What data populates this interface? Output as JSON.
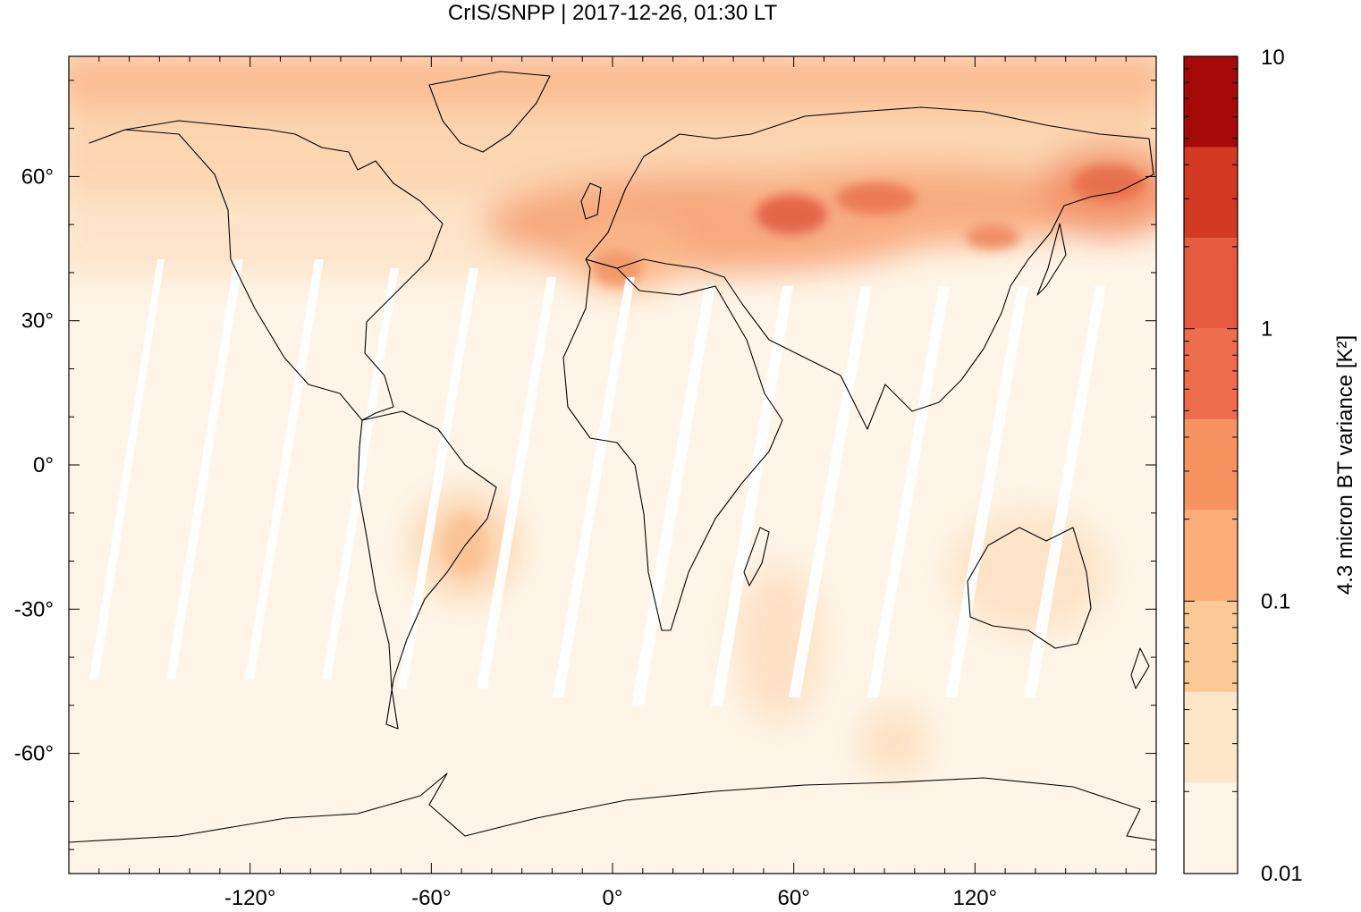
{
  "title": "CrIS/SNPP | 2017-12-26, 01:30 LT",
  "map": {
    "lon_range": [
      -180,
      180
    ],
    "lat_range": [
      -85,
      85
    ],
    "x_ticks": [
      {
        "value": -120,
        "label": "-120°"
      },
      {
        "value": -60,
        "label": "-60°"
      },
      {
        "value": 0,
        "label": "0°"
      },
      {
        "value": 60,
        "label": "60°"
      },
      {
        "value": 120,
        "label": "120°"
      }
    ],
    "y_ticks": [
      {
        "value": 60,
        "label": "60°"
      },
      {
        "value": 30,
        "label": "30°"
      },
      {
        "value": 0,
        "label": "0°"
      },
      {
        "value": -30,
        "label": "-30°"
      },
      {
        "value": -60,
        "label": "-60°"
      }
    ],
    "background_color": "#fef5e8"
  },
  "colorbar": {
    "label": "4.3 micron BT variance [K²]",
    "scale": "log",
    "range": [
      0.01,
      10
    ],
    "tick_labels": [
      {
        "value": 10,
        "label": "10"
      },
      {
        "value": 1,
        "label": "1"
      },
      {
        "value": 0.1,
        "label": "0.1"
      },
      {
        "value": 0.01,
        "label": "0.01"
      }
    ],
    "colors": [
      "#fef5e8",
      "#fde7c8",
      "#fcc996",
      "#fbae77",
      "#f79360",
      "#ee6d4d",
      "#e65a40",
      "#d23a23",
      "#a60a08"
    ]
  }
}
